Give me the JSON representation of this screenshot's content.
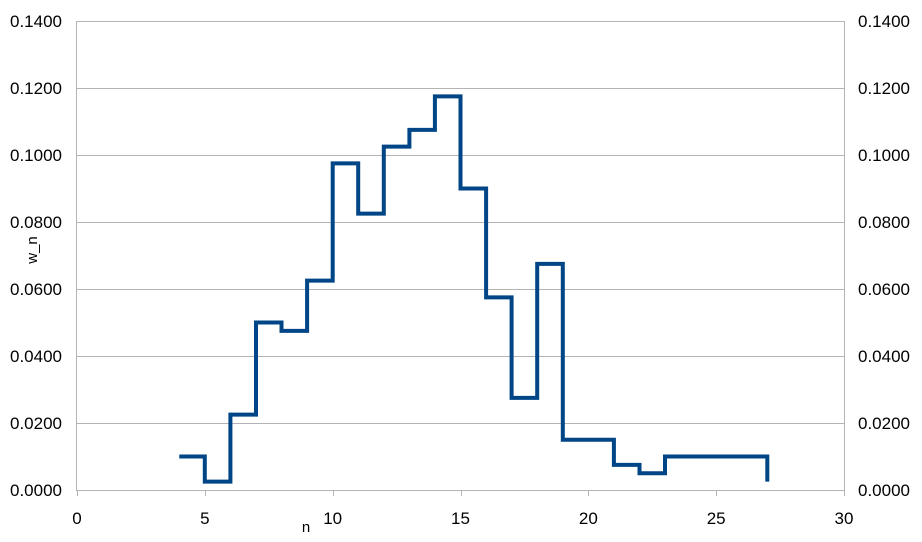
{
  "chart_data": {
    "type": "line",
    "step": "horizontal-steps",
    "xlabel": "n",
    "ylabel": "w_n",
    "xlim": [
      0,
      30
    ],
    "ylim": [
      0,
      0.14
    ],
    "x_ticks": [
      "0",
      "5",
      "10",
      "15",
      "20",
      "25",
      "30"
    ],
    "x_tick_values": [
      0,
      5,
      10,
      15,
      20,
      25,
      30
    ],
    "y_ticks": [
      "0.0000",
      "0.0200",
      "0.0400",
      "0.0600",
      "0.0800",
      "0.1000",
      "0.1200",
      "0.1400"
    ],
    "y_tick_values": [
      0,
      0.02,
      0.04,
      0.06,
      0.08,
      0.1,
      0.12,
      0.14
    ],
    "secondary_y_axis": true,
    "grid": "horizontal",
    "series_color": "#004586",
    "series": [
      {
        "x": [
          4,
          5,
          6,
          7,
          8,
          9,
          10,
          11,
          12,
          13,
          14,
          15,
          16,
          17,
          18,
          19,
          20,
          21,
          22,
          23,
          24,
          25,
          26,
          27
        ],
        "values": [
          0.01,
          0.0025,
          0.0225,
          0.05,
          0.0475,
          0.0625,
          0.0975,
          0.0825,
          0.1025,
          0.1075,
          0.1175,
          0.09,
          0.0575,
          0.0275,
          0.0675,
          0.015,
          0.015,
          0.0075,
          0.005,
          0.01,
          0.01,
          0.01,
          0.01,
          0.0025
        ]
      }
    ]
  }
}
